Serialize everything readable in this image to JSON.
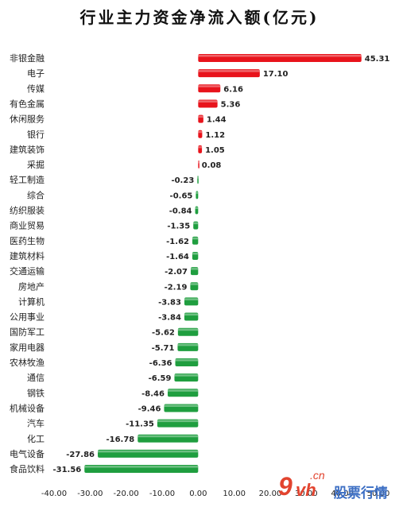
{
  "chart_data": {
    "type": "bar",
    "orientation": "horizontal",
    "title": "行业主力资金净流入额(亿元)",
    "categories": [
      "非银金融",
      "电子",
      "传媒",
      "有色金属",
      "休闲服务",
      "银行",
      "建筑装饰",
      "采掘",
      "轻工制造",
      "综合",
      "纺织服装",
      "商业贸易",
      "医药生物",
      "建筑材料",
      "交通运输",
      "房地产",
      "计算机",
      "公用事业",
      "国防军工",
      "家用电器",
      "农林牧渔",
      "通信",
      "钢铁",
      "机械设备",
      "汽车",
      "化工",
      "电气设备",
      "食品饮料"
    ],
    "values": [
      45.31,
      17.1,
      6.16,
      5.36,
      1.44,
      1.12,
      1.05,
      0.08,
      -0.23,
      -0.65,
      -0.84,
      -1.35,
      -1.62,
      -1.64,
      -2.07,
      -2.19,
      -3.83,
      -3.84,
      -5.62,
      -5.71,
      -6.36,
      -6.59,
      -8.46,
      -9.46,
      -11.35,
      -16.78,
      -27.86,
      -31.56
    ],
    "value_labels": [
      "45.31",
      "17.10",
      "6.16",
      "5.36",
      "1.44",
      "1.12",
      "1.05",
      "0.08",
      "-0.23",
      "-0.65",
      "-0.84",
      "-1.35",
      "-1.62",
      "-1.64",
      "-2.07",
      "-2.19",
      "-3.83",
      "-3.84",
      "-5.62",
      "-5.71",
      "-6.36",
      "-6.59",
      "-8.46",
      "-9.46",
      "-11.35",
      "-16.78",
      "-27.86",
      "-31.56"
    ],
    "xlim": [
      -40,
      50
    ],
    "x_ticks": [
      "-40.00",
      "-30.00",
      "-20.00",
      "-10.00",
      "0.00",
      "10.00",
      "20.00",
      "30.00",
      "40.00",
      "50.00"
    ],
    "grid": false,
    "legend": "none",
    "colors": {
      "positive": "#e8131b",
      "negative": "#1f9e3f"
    }
  },
  "watermark": {
    "mark": "9",
    "mark2": "vh",
    "domain_suffix": ".cn",
    "name": "股票行情"
  }
}
